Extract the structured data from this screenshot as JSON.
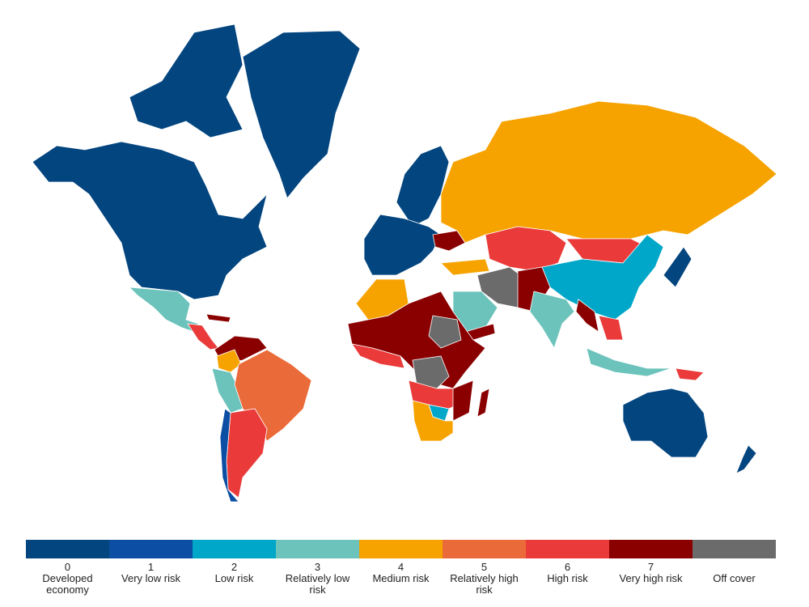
{
  "legend": {
    "items": [
      {
        "score": 0,
        "label": "Developed economy",
        "color": "#03457f"
      },
      {
        "score": 1,
        "label": "Very low risk",
        "color": "#0c4ea3"
      },
      {
        "score": 2,
        "label": "Low risk",
        "color": "#00a7c8"
      },
      {
        "score": 3,
        "label": "Relatively low risk",
        "color": "#6cc3bb"
      },
      {
        "score": 4,
        "label": "Medium risk",
        "color": "#f6a300"
      },
      {
        "score": 5,
        "label": "Relatively high risk",
        "color": "#eb6a3a"
      },
      {
        "score": 6,
        "label": "High risk",
        "color": "#ea3a3a"
      },
      {
        "score": 7,
        "label": "Very high risk",
        "color": "#8a0000"
      },
      {
        "label": "Off cover",
        "color": "#6b6b6b"
      }
    ]
  }
}
